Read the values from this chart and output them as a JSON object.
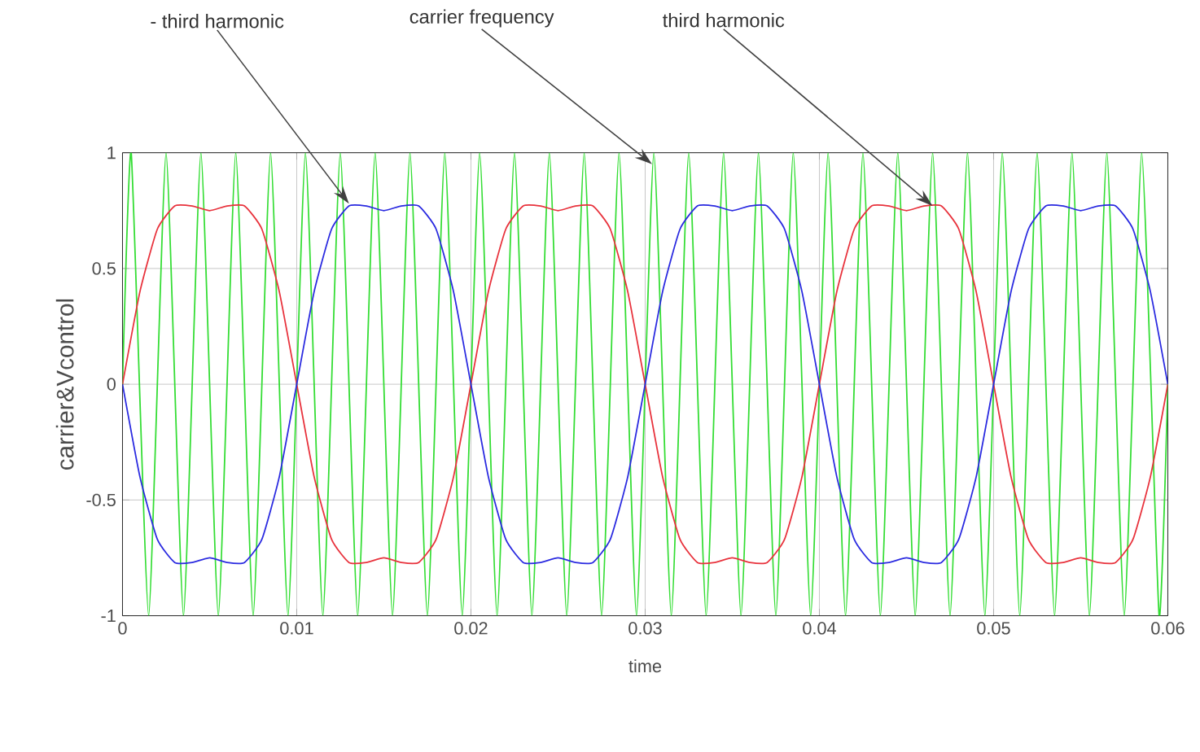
{
  "chart_data": {
    "type": "line",
    "xlabel": "time",
    "ylabel": "carrier&Vcontrol",
    "xlim": [
      0,
      0.06
    ],
    "ylim": [
      -1,
      1
    ],
    "xticks": [
      0,
      0.01,
      0.02,
      0.03,
      0.04,
      0.05,
      0.06
    ],
    "yticks": [
      -1,
      -0.5,
      0,
      0.5,
      1
    ],
    "grid": true,
    "marker": "none",
    "line_style": "solid",
    "x": [
      0,
      0.001,
      0.002,
      0.003,
      0.004,
      0.005,
      0.006,
      0.007,
      0.008,
      0.009,
      0.01,
      0.011,
      0.012,
      0.013,
      0.014,
      0.015,
      0.016,
      0.017,
      0.018,
      0.019,
      0.02,
      0.021,
      0.022,
      0.023,
      0.024,
      0.025,
      0.026,
      0.027,
      0.028,
      0.029,
      0.03,
      0.031,
      0.032,
      0.033,
      0.034,
      0.035,
      0.036,
      0.037,
      0.038,
      0.039,
      0.04,
      0.041,
      0.042,
      0.043,
      0.044,
      0.045,
      0.046,
      0.047,
      0.048,
      0.049,
      0.05,
      0.051,
      0.052,
      0.053,
      0.054,
      0.055,
      0.056,
      0.057,
      0.058,
      0.059,
      0.06
    ],
    "series": [
      {
        "color": "#33dd33",
        "x": [
          0,
          0.0005,
          0.0015,
          0.0025,
          0.0035,
          0.0045,
          0.0055,
          0.0065,
          0.0075,
          0.0085,
          0.0095,
          0.0105,
          0.0115,
          0.0125,
          0.0135,
          0.0145,
          0.0155,
          0.0165,
          0.0175,
          0.0185,
          0.0195,
          0.0205,
          0.0215,
          0.0225,
          0.0235,
          0.0245,
          0.0255,
          0.0265,
          0.0275,
          0.0285,
          0.0295,
          0.0305,
          0.0315,
          0.0325,
          0.0335,
          0.0345,
          0.0355,
          0.0365,
          0.0375,
          0.0385,
          0.0395,
          0.0405,
          0.0415,
          0.0425,
          0.0435,
          0.0445,
          0.0455,
          0.0465,
          0.0475,
          0.0485,
          0.0495,
          0.0505,
          0.0515,
          0.0525,
          0.0535,
          0.0545,
          0.0555,
          0.0565,
          0.0575,
          0.0585,
          0.0595,
          0.06
        ],
        "values": [
          0,
          1,
          -1,
          1,
          -1,
          1,
          -1,
          1,
          -1,
          1,
          -1,
          1,
          -1,
          1,
          -1,
          1,
          -1,
          1,
          -1,
          1,
          -1,
          1,
          -1,
          1,
          -1,
          1,
          -1,
          1,
          -1,
          1,
          -1,
          1,
          -1,
          1,
          -1,
          1,
          -1,
          1,
          -1,
          1,
          -1,
          1,
          -1,
          1,
          -1,
          1,
          -1,
          1,
          -1,
          1,
          -1,
          1,
          -1,
          1,
          -1,
          1,
          -1,
          1,
          -1,
          1,
          -1,
          0
        ]
      },
      {
        "color": "#e8323c",
        "values": [
          0,
          0.4,
          0.67,
          0.77,
          0.77,
          0.75,
          0.77,
          0.77,
          0.67,
          0.4,
          0,
          -0.4,
          -0.67,
          -0.77,
          -0.77,
          -0.75,
          -0.77,
          -0.77,
          -0.67,
          -0.4,
          0,
          0.4,
          0.67,
          0.77,
          0.77,
          0.75,
          0.77,
          0.77,
          0.67,
          0.4,
          0,
          -0.4,
          -0.67,
          -0.77,
          -0.77,
          -0.75,
          -0.77,
          -0.77,
          -0.67,
          -0.4,
          0,
          0.4,
          0.67,
          0.77,
          0.77,
          0.75,
          0.77,
          0.77,
          0.67,
          0.4,
          0,
          -0.4,
          -0.67,
          -0.77,
          -0.77,
          -0.75,
          -0.77,
          -0.77,
          -0.67,
          -0.4,
          0
        ]
      },
      {
        "color": "#2a2ae0",
        "values": [
          0,
          -0.4,
          -0.67,
          -0.77,
          -0.77,
          -0.75,
          -0.77,
          -0.77,
          -0.67,
          -0.4,
          0,
          0.4,
          0.67,
          0.77,
          0.77,
          0.75,
          0.77,
          0.77,
          0.67,
          0.4,
          0,
          -0.4,
          -0.67,
          -0.77,
          -0.77,
          -0.75,
          -0.77,
          -0.77,
          -0.67,
          -0.4,
          0,
          0.4,
          0.67,
          0.77,
          0.77,
          0.75,
          0.77,
          0.77,
          0.67,
          0.4,
          0,
          -0.4,
          -0.67,
          -0.77,
          -0.77,
          -0.75,
          -0.77,
          -0.77,
          -0.67,
          -0.4,
          0,
          0.4,
          0.67,
          0.77,
          0.77,
          0.75,
          0.77,
          0.77,
          0.67,
          0.4,
          0
        ]
      }
    ],
    "annotations": [
      {
        "text": "- third harmonic",
        "x": 0.013,
        "y": 0.78
      },
      {
        "text": "carrier frequency",
        "x": 0.0304,
        "y": 0.95
      },
      {
        "text": "third harmonic",
        "x": 0.0465,
        "y": 0.77
      }
    ]
  }
}
